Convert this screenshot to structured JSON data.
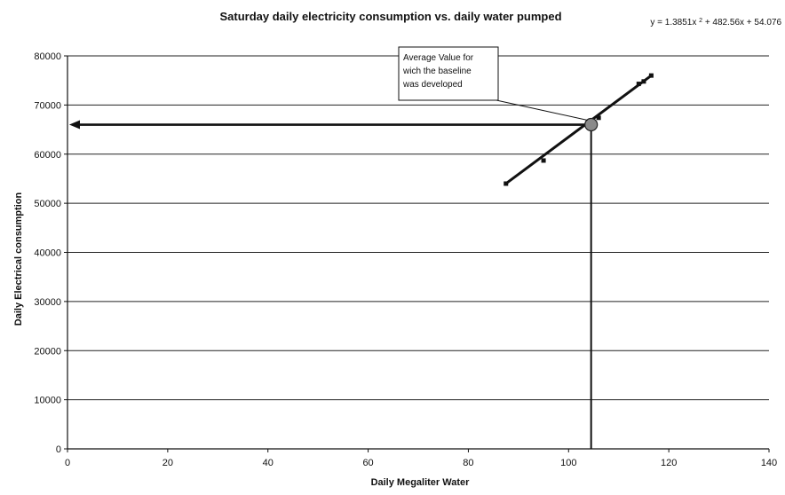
{
  "chart_data": {
    "type": "scatter",
    "title": "Saturday daily electricity consumption vs. daily water pumped",
    "xlabel": "Daily Megaliter Water",
    "ylabel": "Daily Electrical consumption",
    "xlim": [
      0,
      140
    ],
    "ylim": [
      0,
      80000
    ],
    "x_ticks": [
      0,
      20,
      40,
      60,
      80,
      100,
      120,
      140
    ],
    "y_ticks": [
      0,
      10000,
      20000,
      30000,
      40000,
      50000,
      60000,
      70000,
      80000
    ],
    "x_tick_labels": [
      "0",
      "20",
      "40",
      "60",
      "80",
      "100",
      "120",
      "140"
    ],
    "y_tick_labels": [
      "0",
      "10000",
      "20000",
      "30000",
      "40000",
      "50000",
      "60000",
      "70000",
      "80000"
    ],
    "grid": "horizontal",
    "series": [
      {
        "values": [
          {
            "x": 87.5,
            "y": 54000
          },
          {
            "x": 95,
            "y": 58700
          },
          {
            "x": 104,
            "y": 65800
          },
          {
            "x": 106,
            "y": 67400
          },
          {
            "x": 114,
            "y": 74300
          },
          {
            "x": 115,
            "y": 74800
          },
          {
            "x": 116.5,
            "y": 76000
          }
        ]
      }
    ],
    "trendline": {
      "type": "polynomial",
      "equation_prefix": "y = 1.3851x",
      "equation_superscript": "2",
      "equation_suffix": " + 482.56x + 54.076",
      "coefficients": [
        1.3851,
        482.56,
        54.076
      ],
      "x_range": [
        87.5,
        116.5
      ]
    },
    "annotation": {
      "lines": [
        "Average Value for",
        "wich the baseline",
        "was developed"
      ],
      "point": {
        "x": 104.5,
        "y": 66000
      }
    },
    "colors": {
      "data": "#111111",
      "grid": "#222222",
      "text": "#111111"
    }
  }
}
